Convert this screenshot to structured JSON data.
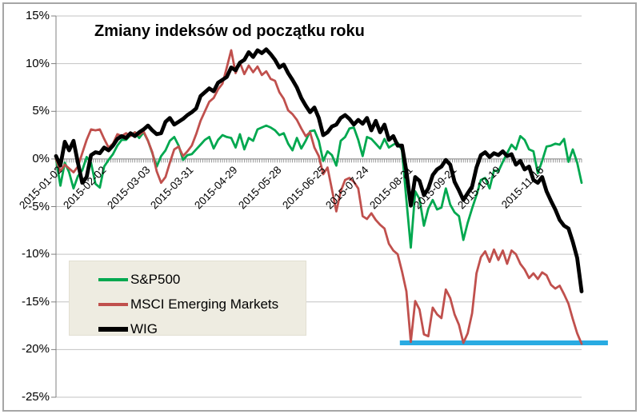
{
  "title": "Zmiany indeksów od początku roku",
  "axes": {
    "y": {
      "labels": [
        "15%",
        "10%",
        "5%",
        "0%",
        "-5%",
        "-10%",
        "-15%",
        "-20%",
        "-25%"
      ],
      "values": [
        15,
        10,
        5,
        0,
        -5,
        -10,
        -15,
        -20,
        -25
      ],
      "max": 15,
      "min": -25,
      "step": 5,
      "unit": "%"
    },
    "x": {
      "labels": [
        "2015-01-02",
        "2015-02-02",
        "2015-03-03",
        "2015-03-31",
        "2015-04-29",
        "2015-05-28",
        "2015-06-25",
        "2015-07-24",
        "2015-08-21",
        "2015-09-21",
        "2015-10-19",
        "2015-11-16"
      ],
      "label_interval_days": 20,
      "total_days": 240
    }
  },
  "legend": {
    "items": [
      {
        "label": "S&P500",
        "color_key": "sp500"
      },
      {
        "label": "MSCI Emerging Markets",
        "color_key": "msci_em"
      },
      {
        "label": "WIG",
        "color_key": "wig"
      }
    ]
  },
  "colors": {
    "sp500": "#00A84F",
    "msci_em": "#C0504D",
    "wig": "#000000",
    "support_line": "#29ABE2",
    "gridline": "#C3C3C3",
    "axis": "#808080",
    "legend_bg": "#EEECE1",
    "figure_border": "#A6A6A6"
  },
  "chart_data": {
    "type": "line",
    "title": "Zmiany indeksów od początku roku",
    "x_unit": "trading-day index from 2015-01-02, sampled every 2 trading days",
    "y_unit": "percent change since start of year",
    "ylim": [
      -25,
      15
    ],
    "grid": true,
    "legend_position": "inside lower-left",
    "x_tick_labels": [
      "2015-01-02",
      "2015-02-02",
      "2015-03-03",
      "2015-03-31",
      "2015-04-29",
      "2015-05-28",
      "2015-06-25",
      "2015-07-24",
      "2015-08-21",
      "2015-09-21",
      "2015-10-19",
      "2015-11-16"
    ],
    "sample_step_days": 2,
    "total_days": 240,
    "series": [
      {
        "name": "S&P500",
        "color_key": "sp500",
        "width": 2.8,
        "values": [
          0.0,
          -2.8,
          -0.4,
          -1.4,
          -3.1,
          -1.8,
          -1.2,
          0.2,
          -0.4,
          -2.6,
          -3.0,
          -0.8,
          -0.1,
          0.5,
          1.4,
          2.0,
          2.0,
          2.5,
          2.8,
          2.2,
          2.8,
          1.9,
          0.6,
          -0.8,
          0.3,
          0.9,
          1.9,
          2.3,
          1.4,
          -0.1,
          0.4,
          0.5,
          1.0,
          1.5,
          2.0,
          2.3,
          1.1,
          2.0,
          2.5,
          2.3,
          2.2,
          1.2,
          2.6,
          1.0,
          2.2,
          1.9,
          3.1,
          3.3,
          3.5,
          3.3,
          3.0,
          2.5,
          2.7,
          1.6,
          0.9,
          2.2,
          1.1,
          1.9,
          2.9,
          3.0,
          1.9,
          -0.2,
          0.8,
          0.4,
          -0.7,
          1.9,
          2.3,
          3.2,
          3.3,
          2.0,
          0.3,
          2.3,
          2.1,
          1.6,
          1.1,
          2.1,
          1.2,
          1.5,
          1.7,
          0.9,
          -4.3,
          -9.3,
          -3.4,
          -4.2,
          -7.0,
          -5.2,
          -4.3,
          -5.3,
          -5.1,
          -3.1,
          -4.8,
          -5.6,
          -6.0,
          -8.5,
          -6.7,
          -5.2,
          -3.8,
          -2.2,
          -2.0,
          -3.1,
          -1.2,
          -1.3,
          -0.3,
          0.6,
          1.5,
          1.0,
          2.4,
          2.0,
          1.0,
          0.8,
          -1.5,
          -0.2,
          1.3,
          1.4,
          1.6,
          1.5,
          2.1,
          -0.3,
          1.0,
          -0.4,
          -2.5
        ]
      },
      {
        "name": "MSCI Emerging Markets",
        "color_key": "msci_em",
        "width": 2.8,
        "values": [
          0.0,
          -1.3,
          -0.6,
          -1.0,
          -1.4,
          -0.8,
          0.6,
          2.0,
          3.1,
          3.0,
          3.1,
          2.1,
          1.2,
          1.6,
          2.6,
          2.4,
          2.7,
          2.4,
          2.8,
          2.5,
          2.9,
          1.9,
          0.7,
          -1.3,
          -2.5,
          -1.9,
          -0.4,
          1.0,
          1.3,
          0.3,
          0.8,
          1.4,
          2.6,
          4.0,
          5.0,
          6.0,
          6.4,
          7.3,
          7.9,
          9.6,
          11.4,
          9.0,
          10.1,
          8.9,
          9.8,
          9.1,
          9.7,
          8.8,
          9.2,
          8.4,
          8.2,
          7.0,
          6.3,
          5.1,
          4.7,
          4.1,
          3.2,
          2.4,
          2.8,
          1.2,
          0.3,
          -1.6,
          -0.9,
          -3.2,
          -5.5,
          -3.4,
          -2.2,
          -2.0,
          -2.4,
          -3.1,
          -6.0,
          -6.3,
          -5.7,
          -6.4,
          -6.9,
          -7.3,
          -8.9,
          -9.6,
          -10.0,
          -11.8,
          -13.9,
          -19.2,
          -14.9,
          -15.8,
          -18.4,
          -18.6,
          -15.6,
          -16.3,
          -16.7,
          -13.7,
          -14.6,
          -16.3,
          -17.4,
          -19.3,
          -18.3,
          -16.2,
          -12.0,
          -10.3,
          -9.7,
          -10.8,
          -9.5,
          -10.6,
          -9.6,
          -11.0,
          -9.6,
          -10.0,
          -11.0,
          -11.6,
          -12.5,
          -12.0,
          -12.6,
          -11.9,
          -12.2,
          -13.2,
          -13.6,
          -13.3,
          -14.2,
          -15.2,
          -16.8,
          -18.3,
          -19.4
        ]
      },
      {
        "name": "WIG",
        "color_key": "wig",
        "width": 4.8,
        "values": [
          0.3,
          -0.7,
          1.8,
          0.9,
          1.9,
          -0.4,
          -2.5,
          -1.9,
          0.4,
          0.7,
          0.6,
          1.2,
          0.9,
          1.4,
          2.1,
          2.4,
          2.2,
          2.7,
          2.4,
          2.8,
          3.1,
          3.5,
          3.0,
          2.6,
          2.7,
          3.9,
          4.3,
          3.6,
          3.9,
          4.2,
          4.6,
          4.9,
          5.3,
          6.6,
          7.0,
          7.4,
          7.1,
          8.0,
          8.3,
          8.6,
          9.6,
          9.3,
          10.1,
          10.4,
          11.2,
          10.7,
          11.4,
          11.1,
          11.5,
          11.0,
          10.4,
          9.6,
          9.9,
          9.0,
          8.3,
          7.5,
          6.4,
          5.6,
          4.9,
          5.4,
          4.3,
          2.5,
          2.8,
          3.4,
          3.6,
          4.3,
          4.6,
          4.2,
          3.6,
          4.1,
          3.7,
          4.3,
          3.0,
          4.0,
          2.8,
          3.6,
          2.0,
          2.4,
          1.4,
          1.4,
          -1.3,
          -4.9,
          -1.9,
          -2.3,
          -3.8,
          -3.1,
          -1.7,
          -1.1,
          -0.8,
          -0.1,
          -0.6,
          -2.4,
          -3.3,
          -4.3,
          -3.6,
          -2.9,
          -0.9,
          0.4,
          0.7,
          0.2,
          0.6,
          0.4,
          0.8,
          0.3,
          0.5,
          -0.6,
          -0.2,
          -1.1,
          -0.8,
          -2.2,
          -2.5,
          -1.9,
          -3.4,
          -4.4,
          -5.3,
          -6.4,
          -7.0,
          -7.3,
          -8.7,
          -10.4,
          -13.9
        ]
      }
    ],
    "annotation_line": {
      "name": "support-level-line",
      "level_pct": -19.3,
      "start_day": 157,
      "end_day": 252,
      "color_key": "support_line",
      "width": 6
    }
  }
}
